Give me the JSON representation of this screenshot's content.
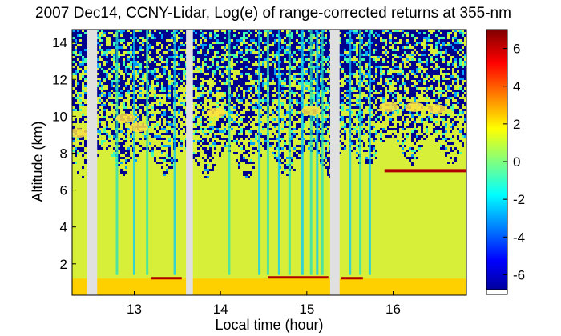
{
  "chart_data": {
    "type": "heatmap",
    "title": "2007 Dec14, CCNY-Lidar, Log(e) of range-corrected returns at 355-nm",
    "xlabel": "Local time (hour)",
    "ylabel": "Altitude (km)",
    "xlim": [
      12.28,
      16.85
    ],
    "ylim": [
      0.3,
      14.7
    ],
    "xticks": [
      13,
      14,
      15,
      16
    ],
    "yticks": [
      2,
      4,
      6,
      8,
      10,
      12,
      14
    ],
    "colorbar": {
      "range": [
        -7,
        7
      ],
      "ticks": [
        6,
        4,
        2,
        0,
        -2,
        -4,
        -6
      ],
      "colormap": "jet"
    },
    "gaps": [
      [
        12.45,
        12.57
      ],
      [
        13.6,
        13.68
      ],
      [
        15.27,
        15.38
      ]
    ],
    "features": {
      "boundary_layer_top_km": 1.2,
      "cloud_layer": {
        "altitude_km": 7.05,
        "start_hour": 15.9,
        "end_hour": 16.85
      },
      "signal_noise_onset_km": 7.5
    },
    "colors": {
      "low": "#00008f",
      "background_aerosol": "#d8ef3a",
      "boundary_layer": "#ffd000",
      "cloud": "#b00000",
      "gap": "#e0e0e0"
    }
  }
}
